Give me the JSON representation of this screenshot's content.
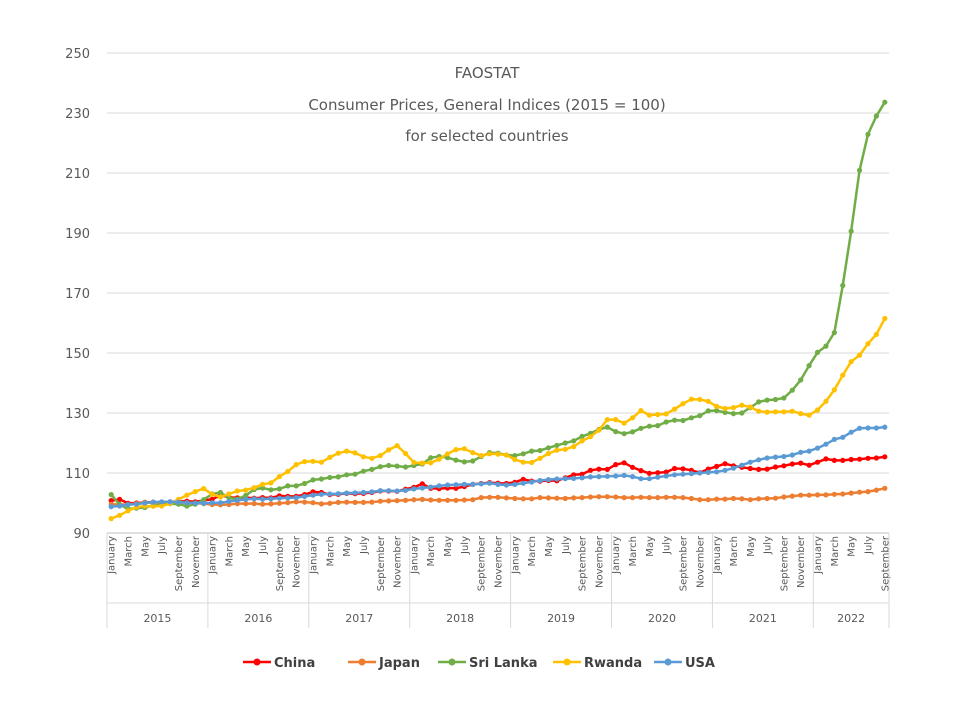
{
  "chart_data": {
    "type": "line",
    "title": [
      "FAOSTAT",
      "Consumer Prices, General Indices (2015 = 100)",
      "for selected countries"
    ],
    "xlabel": "",
    "ylabel": "",
    "ylim": [
      90,
      250
    ],
    "yticks": [
      90,
      110,
      130,
      150,
      170,
      190,
      210,
      230,
      250
    ],
    "grid": true,
    "legend_position": "bottom",
    "years": [
      "2015",
      "2016",
      "2017",
      "2018",
      "2019",
      "2020",
      "2021",
      "2022"
    ],
    "month_tick_labels": [
      "January",
      "March",
      "May",
      "July",
      "September",
      "November"
    ],
    "month_tick_labels_2022": [
      "January",
      "March",
      "May",
      "July",
      "September"
    ],
    "month_count": 93,
    "series": [
      {
        "name": "China",
        "color": "#ff0000",
        "values": [
          100.8,
          101.2,
          99.9,
          100.0,
          100.2,
          100.3,
          100.2,
          100.4,
          100.5,
          100.6,
          100.4,
          100.9,
          101.2,
          102.6,
          101.9,
          101.7,
          101.8,
          101.6,
          101.8,
          101.7,
          102.4,
          102.2,
          102.2,
          102.8,
          103.7,
          103.5,
          102.8,
          102.9,
          103.2,
          103.1,
          103.2,
          103.5,
          104.0,
          104.0,
          103.9,
          104.6,
          105.2,
          106.4,
          104.9,
          104.8,
          105.0,
          104.9,
          105.5,
          106.2,
          106.5,
          106.8,
          106.6,
          106.5,
          106.9,
          107.9,
          107.3,
          107.3,
          107.5,
          107.4,
          108.4,
          109.4,
          109.6,
          110.9,
          111.3,
          111.2,
          112.8,
          113.4,
          111.9,
          110.8,
          109.9,
          110.1,
          110.3,
          111.5,
          111.4,
          110.9,
          110.1,
          111.3,
          112.2,
          113.1,
          112.4,
          111.9,
          111.5,
          111.2,
          111.3,
          112.0,
          112.4,
          113.0,
          113.3,
          112.6,
          113.6,
          114.7,
          114.2,
          114.2,
          114.5,
          114.6,
          114.9,
          115.0,
          115.4
        ]
      },
      {
        "name": "Japan",
        "color": "#ed7d31",
        "values": [
          99.6,
          99.5,
          99.5,
          99.8,
          100.2,
          100.1,
          100.2,
          100.2,
          100.2,
          100.1,
          99.9,
          99.8,
          99.5,
          99.4,
          99.5,
          99.8,
          99.8,
          99.8,
          99.6,
          99.7,
          99.9,
          100.1,
          100.4,
          100.3,
          100.1,
          99.7,
          99.9,
          100.2,
          100.3,
          100.2,
          100.2,
          100.3,
          100.6,
          100.7,
          100.8,
          100.9,
          101.1,
          101.2,
          101.0,
          100.9,
          100.9,
          100.9,
          101.0,
          101.1,
          101.8,
          101.9,
          101.9,
          101.7,
          101.5,
          101.4,
          101.4,
          101.8,
          101.7,
          101.6,
          101.5,
          101.7,
          101.8,
          102.0,
          102.1,
          102.1,
          102.0,
          101.8,
          101.8,
          101.9,
          101.8,
          101.8,
          101.9,
          101.9,
          101.8,
          101.5,
          101.1,
          101.1,
          101.3,
          101.3,
          101.5,
          101.4,
          101.1,
          101.4,
          101.5,
          101.6,
          102.0,
          102.3,
          102.6,
          102.6,
          102.7,
          102.7,
          102.9,
          103.0,
          103.3,
          103.6,
          103.8,
          104.3,
          104.9
        ]
      },
      {
        "name": "Sri Lanka",
        "color": "#70ad47",
        "values": [
          102.8,
          99.5,
          98.0,
          98.3,
          98.5,
          99.2,
          99.5,
          99.8,
          99.6,
          99.0,
          99.6,
          101.1,
          103.0,
          103.5,
          101.7,
          101.3,
          102.5,
          104.5,
          105.0,
          104.4,
          104.7,
          105.7,
          105.7,
          106.5,
          107.7,
          108.0,
          108.5,
          108.7,
          109.4,
          109.6,
          110.6,
          111.2,
          112.1,
          112.5,
          112.3,
          112.0,
          112.5,
          113.0,
          115.1,
          115.5,
          115.1,
          114.3,
          113.7,
          114.0,
          115.5,
          116.8,
          116.6,
          116.0,
          115.8,
          116.4,
          117.3,
          117.5,
          118.4,
          119.2,
          120.0,
          120.7,
          122.2,
          123.2,
          124.5,
          125.3,
          123.8,
          123.1,
          123.7,
          124.9,
          125.6,
          125.8,
          127.0,
          127.6,
          127.5,
          128.4,
          129.1,
          130.7,
          130.8,
          130.2,
          129.8,
          130.0,
          131.8,
          133.7,
          134.3,
          134.5,
          135.0,
          137.6,
          141.0,
          145.8,
          150.2,
          152.3,
          156.8,
          172.5,
          190.6,
          210.9,
          222.9,
          229.0,
          233.6
        ]
      },
      {
        "name": "Rwanda",
        "color": "#ffc000",
        "values": [
          94.8,
          95.9,
          97.4,
          98.6,
          99.0,
          98.9,
          99.0,
          99.8,
          101.2,
          102.6,
          103.8,
          104.8,
          102.9,
          102.0,
          103.0,
          104.0,
          104.3,
          105.1,
          106.2,
          106.7,
          108.8,
          110.5,
          112.8,
          113.8,
          113.9,
          113.6,
          115.2,
          116.6,
          117.3,
          116.7,
          115.4,
          114.9,
          115.8,
          117.7,
          119.1,
          116.5,
          113.5,
          113.3,
          113.4,
          114.6,
          116.4,
          117.8,
          118.1,
          116.8,
          115.8,
          116.4,
          116.3,
          116.0,
          114.5,
          113.6,
          113.5,
          114.9,
          116.5,
          117.6,
          117.9,
          118.8,
          120.7,
          122.1,
          124.3,
          127.8,
          127.8,
          126.6,
          128.4,
          130.8,
          129.3,
          129.5,
          129.7,
          131.3,
          133.1,
          134.6,
          134.5,
          133.9,
          132.2,
          131.5,
          131.8,
          132.6,
          132.0,
          130.6,
          130.3,
          130.4,
          130.4,
          130.6,
          129.8,
          129.3,
          131.0,
          133.9,
          137.7,
          142.6,
          147.1,
          149.3,
          153.1,
          156.2,
          161.5
        ]
      },
      {
        "name": "USA",
        "color": "#5b9bd5",
        "values": [
          98.8,
          99.0,
          99.5,
          99.6,
          100.0,
          100.3,
          100.4,
          100.4,
          100.3,
          100.1,
          100.0,
          99.9,
          100.1,
          100.1,
          100.5,
          100.9,
          101.2,
          101.4,
          101.3,
          101.4,
          101.6,
          101.7,
          101.8,
          102.2,
          102.6,
          102.9,
          103.0,
          103.1,
          103.3,
          103.4,
          103.5,
          103.7,
          104.1,
          104.1,
          104.0,
          104.2,
          104.7,
          105.0,
          105.3,
          105.7,
          106.0,
          106.1,
          106.2,
          106.2,
          106.4,
          106.6,
          106.2,
          106.0,
          106.2,
          106.6,
          107.0,
          107.5,
          107.8,
          108.0,
          108.1,
          108.2,
          108.4,
          108.7,
          108.8,
          108.9,
          109.0,
          109.2,
          108.8,
          108.1,
          108.1,
          108.6,
          109.0,
          109.4,
          109.6,
          109.8,
          110.0,
          110.2,
          110.4,
          110.9,
          111.6,
          112.6,
          113.6,
          114.4,
          115.0,
          115.3,
          115.5,
          116.0,
          116.9,
          117.3,
          118.3,
          119.6,
          121.2,
          121.9,
          123.6,
          124.9,
          125.0,
          125.0,
          125.3
        ]
      }
    ]
  }
}
